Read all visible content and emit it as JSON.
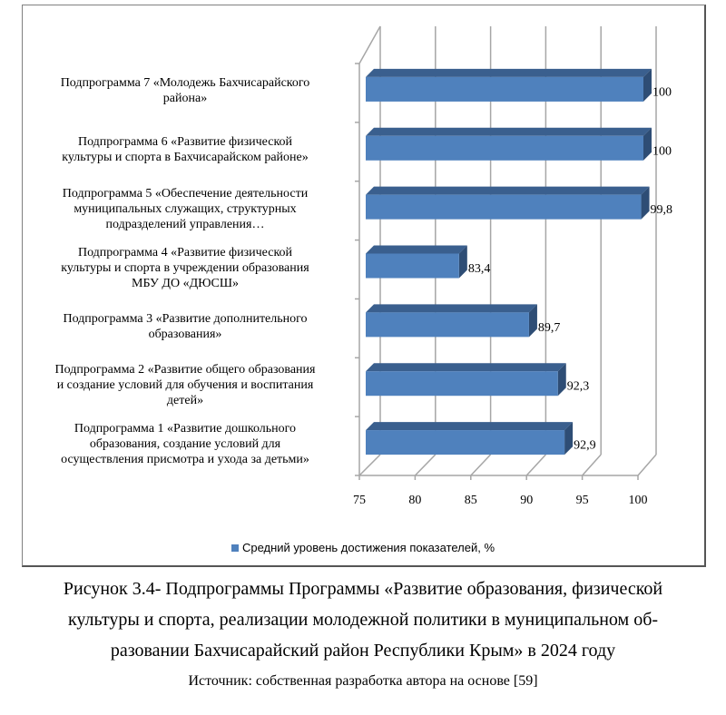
{
  "chart_data": {
    "type": "bar",
    "orientation": "horizontal",
    "style": "3d",
    "categories": [
      [
        "Подпрограмма 1 «Развитие дошкольного",
        "образования, создание условий для",
        "осуществления присмотра и ухода за детьми»"
      ],
      [
        "Подпрограмма 2 «Развитие общего образования",
        "и создание условий для обучения и воспитания",
        "детей»"
      ],
      [
        "Подпрограмма 3 «Развитие дополнительного",
        "образования»"
      ],
      [
        "Подпрограмма 4 «Развитие физической",
        "культуры и спорта в учреждении образования",
        "МБУ ДО «ДЮСШ»"
      ],
      [
        "Подпрограмма 5 «Обеспечение деятельности",
        "муниципальных служащих, структурных",
        "подразделений управления…"
      ],
      [
        "Подпрограмма 6 «Развитие физической",
        "культуры и спорта в Бахчисарайском районе»"
      ],
      [
        "Подпрограмма 7 «Молодежь Бахчисарайского",
        "района»"
      ]
    ],
    "values": [
      92.9,
      92.3,
      89.7,
      83.4,
      99.8,
      100,
      100
    ],
    "value_labels": [
      "92,9",
      "92,3",
      "89,7",
      "83,4",
      "99,8",
      "100",
      "100"
    ],
    "xlim": [
      75,
      100
    ],
    "x_ticks": [
      "75",
      "80",
      "85",
      "90",
      "95",
      "100"
    ],
    "grid": true,
    "legend": {
      "position": "bottom",
      "entries": [
        "Средний уровень достижения показателей, %"
      ]
    },
    "colors": {
      "bar_front": "#4f81bd",
      "bar_top": "#3a5f8e",
      "bar_side": "#2e4d75",
      "grid": "#a6a6a6"
    }
  },
  "caption": {
    "lines": [
      "Рисунок 3.4- Подпрограммы Программы «Развитие образования, физической",
      "культуры и спорта, реализации молодежной политики в муниципальном об-",
      "разовании Бахчисарайский район Республики Крым» в 2024 году"
    ],
    "source": "Источник: собственная разработка автора на основе [59]"
  }
}
